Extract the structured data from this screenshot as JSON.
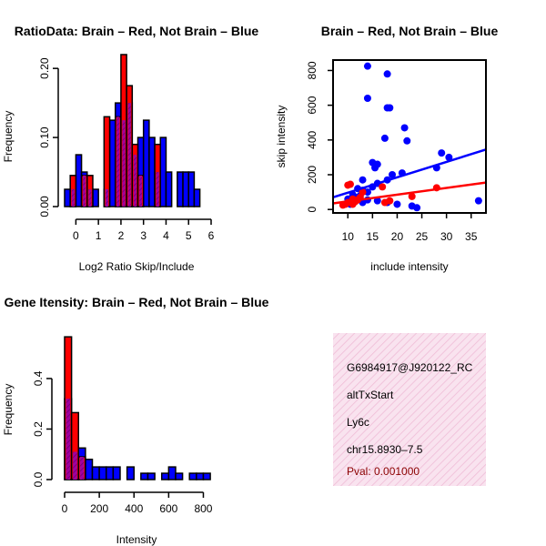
{
  "colors": {
    "red": "#ff0000",
    "blue": "#0000ff",
    "purple": "#a000a0",
    "panel_bg": "#f7d9ea",
    "pval": "#8b0000"
  },
  "chart_data": [
    {
      "type": "bar",
      "title": "RatioData: Brain – Red, Not Brain – Blue",
      "xlabel": "Log2 Ratio Skip/Include",
      "ylabel": "Frequency",
      "xlim": [
        -0.5,
        6.0
      ],
      "ylim": [
        0,
        0.22
      ],
      "xticks": [
        "0",
        "1",
        "2",
        "3",
        "4",
        "5",
        "6"
      ],
      "yticks": [
        "0.00",
        "0.10",
        "0.20"
      ],
      "bin_width": 0.25,
      "series": [
        {
          "name": "Not Brain",
          "color": "blue",
          "bins": [
            {
              "x0": -0.5,
              "v": 0.025
            },
            {
              "x0": -0.25,
              "v": 0.025
            },
            {
              "x0": 0.0,
              "v": 0.075
            },
            {
              "x0": 0.25,
              "v": 0.05
            },
            {
              "x0": 0.5,
              "v": 0.025
            },
            {
              "x0": 0.75,
              "v": 0.025
            },
            {
              "x0": 1.25,
              "v": 0.025
            },
            {
              "x0": 1.5,
              "v": 0.125
            },
            {
              "x0": 1.75,
              "v": 0.15
            },
            {
              "x0": 2.0,
              "v": 0.125
            },
            {
              "x0": 2.25,
              "v": 0.15
            },
            {
              "x0": 2.5,
              "v": 0.075
            },
            {
              "x0": 2.75,
              "v": 0.1
            },
            {
              "x0": 3.0,
              "v": 0.125
            },
            {
              "x0": 3.25,
              "v": 0.1
            },
            {
              "x0": 3.5,
              "v": 0.05
            },
            {
              "x0": 3.75,
              "v": 0.1
            },
            {
              "x0": 4.0,
              "v": 0.05
            },
            {
              "x0": 4.5,
              "v": 0.05
            },
            {
              "x0": 4.75,
              "v": 0.05
            },
            {
              "x0": 5.0,
              "v": 0.05
            },
            {
              "x0": 5.25,
              "v": 0.025
            }
          ]
        },
        {
          "name": "Brain",
          "color": "red",
          "bins": [
            {
              "x0": -0.25,
              "v": 0.045
            },
            {
              "x0": 0.25,
              "v": 0.045
            },
            {
              "x0": 0.5,
              "v": 0.045
            },
            {
              "x0": 1.25,
              "v": 0.13
            },
            {
              "x0": 1.75,
              "v": 0.13
            },
            {
              "x0": 2.0,
              "v": 0.22
            },
            {
              "x0": 2.25,
              "v": 0.175
            },
            {
              "x0": 2.5,
              "v": 0.09
            },
            {
              "x0": 2.75,
              "v": 0.045
            },
            {
              "x0": 3.5,
              "v": 0.09
            }
          ]
        }
      ]
    },
    {
      "type": "scatter",
      "title": "Brain – Red, Not Brain – Blue",
      "xlabel": "include intensity",
      "ylabel": "skip intensity",
      "xlim": [
        7,
        38
      ],
      "ylim": [
        -20,
        860
      ],
      "xticks": [
        10,
        15,
        20,
        25,
        30,
        35
      ],
      "yticks": [
        0,
        200,
        400,
        600,
        800
      ],
      "series": [
        {
          "name": "Not Brain",
          "color": "blue",
          "points": [
            [
              14,
              825
            ],
            [
              18,
              780
            ],
            [
              14,
              640
            ],
            [
              18,
              585
            ],
            [
              18.5,
              585
            ],
            [
              21.5,
              470
            ],
            [
              17.5,
              410
            ],
            [
              22,
              395
            ],
            [
              15,
              270
            ],
            [
              16,
              260
            ],
            [
              15.5,
              240
            ],
            [
              29,
              325
            ],
            [
              30.5,
              300
            ],
            [
              28,
              240
            ],
            [
              21,
              210
            ],
            [
              19,
              200
            ],
            [
              18,
              170
            ],
            [
              13,
              170
            ],
            [
              16,
              150
            ],
            [
              15,
              130
            ],
            [
              12,
              120
            ],
            [
              13,
              110
            ],
            [
              14,
              100
            ],
            [
              11,
              85
            ],
            [
              12.5,
              80
            ],
            [
              12,
              70
            ],
            [
              10,
              60
            ],
            [
              14,
              55
            ],
            [
              16,
              50
            ],
            [
              18,
              40
            ],
            [
              20,
              30
            ],
            [
              23,
              20
            ],
            [
              24,
              10
            ],
            [
              36.5,
              50
            ],
            [
              12.5,
              55
            ],
            [
              10.5,
              30
            ],
            [
              13,
              40
            ],
            [
              11,
              50
            ]
          ]
        },
        {
          "name": "Brain",
          "color": "red",
          "points": [
            [
              9,
              25
            ],
            [
              10,
              140
            ],
            [
              10.5,
              145
            ],
            [
              11,
              60
            ],
            [
              11.5,
              45
            ],
            [
              12,
              55
            ],
            [
              12.5,
              70
            ],
            [
              10,
              40
            ],
            [
              13,
              100
            ],
            [
              17,
              130
            ],
            [
              17.5,
              40
            ],
            [
              18.5,
              50
            ],
            [
              23,
              75
            ],
            [
              28,
              125
            ],
            [
              9.5,
              30
            ],
            [
              11,
              30
            ]
          ]
        }
      ],
      "fit_lines": [
        {
          "color": "blue",
          "x": [
            7,
            38
          ],
          "y": [
            70,
            345
          ]
        },
        {
          "color": "red",
          "x": [
            7,
            38
          ],
          "y": [
            35,
            155
          ]
        }
      ]
    },
    {
      "type": "bar",
      "title": "Gene Itensity: Brain – Red, Not Brain – Blue",
      "xlabel": "Intensity",
      "ylabel": "Frequency",
      "xlim": [
        0,
        850
      ],
      "ylim": [
        0,
        0.58
      ],
      "xticks": [
        "0",
        "200",
        "400",
        "600",
        "800"
      ],
      "yticks": [
        "0.0",
        "0.2",
        "0.4"
      ],
      "bin_width": 40,
      "series": [
        {
          "name": "Not Brain",
          "color": "blue",
          "bins": [
            {
              "x0": 0,
              "v": 0.32
            },
            {
              "x0": 40,
              "v": 0.11
            },
            {
              "x0": 80,
              "v": 0.125
            },
            {
              "x0": 120,
              "v": 0.08
            },
            {
              "x0": 160,
              "v": 0.05
            },
            {
              "x0": 200,
              "v": 0.05
            },
            {
              "x0": 240,
              "v": 0.05
            },
            {
              "x0": 280,
              "v": 0.05
            },
            {
              "x0": 360,
              "v": 0.05
            },
            {
              "x0": 440,
              "v": 0.025
            },
            {
              "x0": 480,
              "v": 0.025
            },
            {
              "x0": 560,
              "v": 0.025
            },
            {
              "x0": 600,
              "v": 0.05
            },
            {
              "x0": 640,
              "v": 0.025
            },
            {
              "x0": 720,
              "v": 0.025
            },
            {
              "x0": 760,
              "v": 0.025
            },
            {
              "x0": 800,
              "v": 0.025
            }
          ]
        },
        {
          "name": "Brain",
          "color": "red",
          "bins": [
            {
              "x0": 0,
              "v": 0.565
            },
            {
              "x0": 40,
              "v": 0.265
            },
            {
              "x0": 80,
              "v": 0.09
            }
          ]
        }
      ]
    }
  ],
  "info_panel": {
    "id": "G6984917@J920122_RC",
    "event": "altTxStart",
    "gene": "Ly6c",
    "location": "chr15.8930–7.5",
    "pval": "Pval: 0.001000"
  }
}
